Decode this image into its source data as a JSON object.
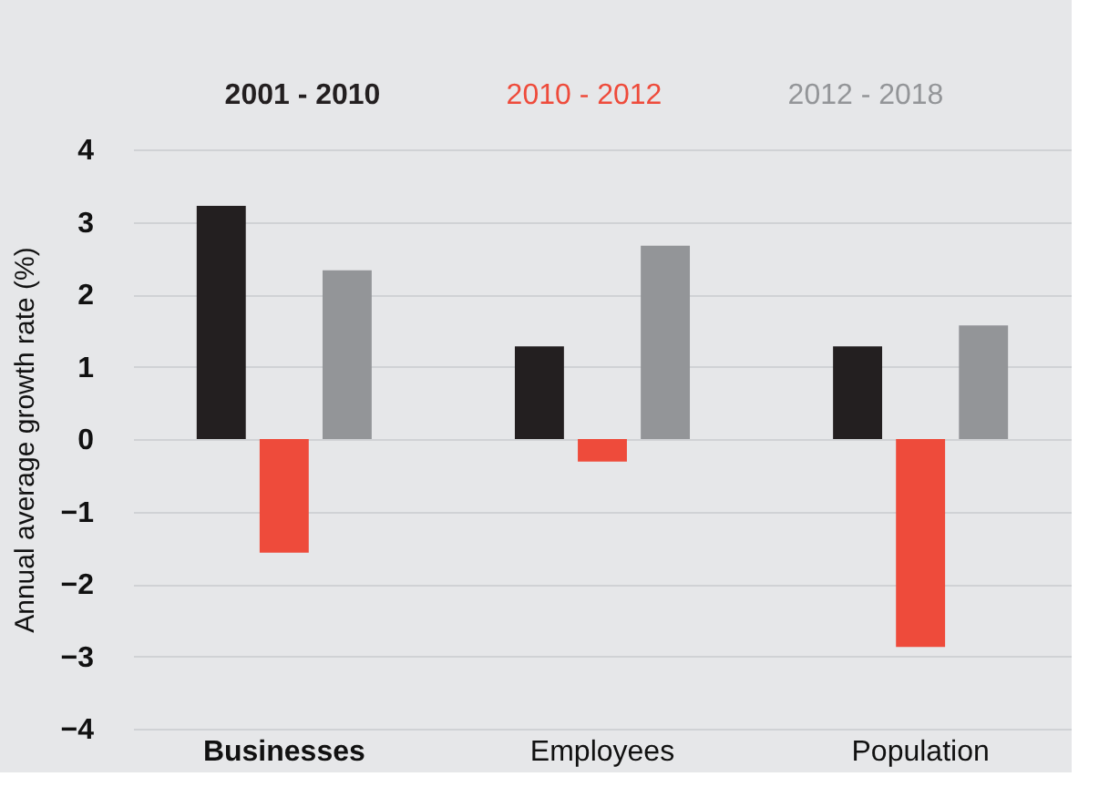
{
  "chart_data": {
    "type": "bar",
    "ylabel": "Annual average growth rate (%)",
    "categories": [
      "Businesses",
      "Employees",
      "Population"
    ],
    "series": [
      {
        "name": "2001 - 2010",
        "color": "#231f20",
        "values": [
          3.22,
          1.28,
          1.28
        ]
      },
      {
        "name": "2010 - 2012",
        "color": "#ee4b3b",
        "values": [
          -1.57,
          -0.31,
          -2.87
        ]
      },
      {
        "name": "2012 - 2018",
        "color": "#939598",
        "values": [
          2.33,
          2.67,
          1.57
        ]
      }
    ],
    "ylim": [
      -4,
      4
    ],
    "yticks": [
      -4,
      -3,
      -2,
      -1,
      0,
      1,
      2,
      3,
      4
    ],
    "grid": "y",
    "legend": "top"
  }
}
